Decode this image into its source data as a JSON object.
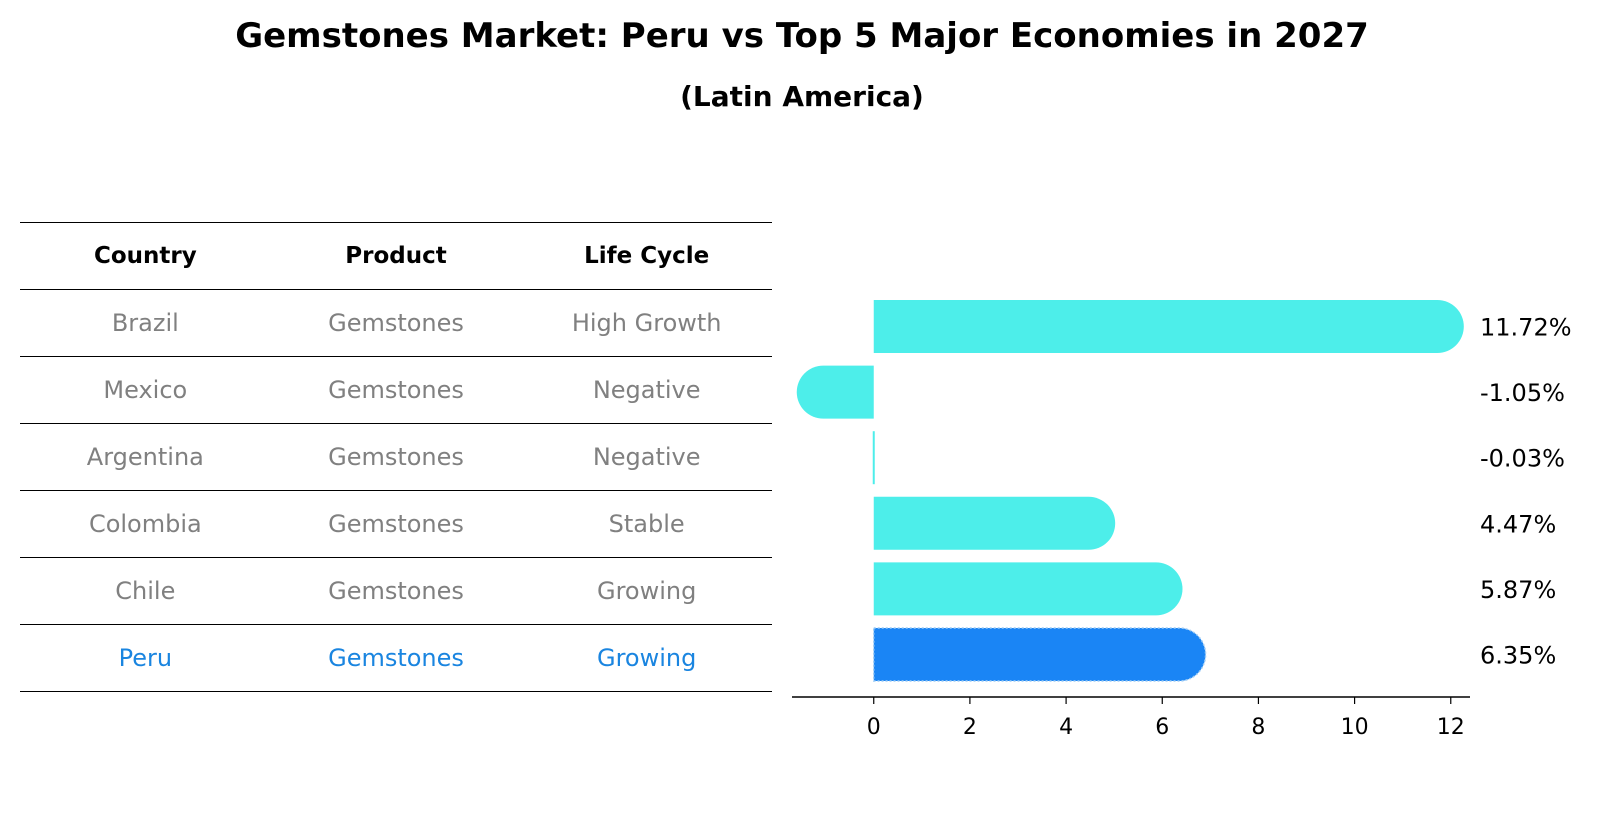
{
  "title": "Gemstones Market: Peru vs Top 5 Major Economies in 2027",
  "subtitle": "(Latin America)",
  "table": {
    "headers": [
      "Country",
      "Product",
      "Life Cycle"
    ],
    "rows": [
      {
        "country": "Brazil",
        "product": "Gemstones",
        "life_cycle": "High Growth"
      },
      {
        "country": "Mexico",
        "product": "Gemstones",
        "life_cycle": "Negative"
      },
      {
        "country": "Argentina",
        "product": "Gemstones",
        "life_cycle": "Negative"
      },
      {
        "country": "Colombia",
        "product": "Gemstones",
        "life_cycle": "Stable"
      },
      {
        "country": "Chile",
        "product": "Gemstones",
        "life_cycle": "Growing"
      },
      {
        "country": "Peru",
        "product": "Gemstones",
        "life_cycle": "Growing"
      }
    ]
  },
  "chart_data": {
    "type": "bar",
    "orientation": "horizontal",
    "categories": [
      "Brazil",
      "Mexico",
      "Argentina",
      "Colombia",
      "Chile",
      "Peru"
    ],
    "values": [
      11.72,
      -1.05,
      -0.03,
      4.47,
      5.87,
      6.35
    ],
    "value_labels": [
      "11.72%",
      "-1.05%",
      "-0.03%",
      "4.47%",
      "5.87%",
      "6.35%"
    ],
    "xticks": [
      "0",
      "2",
      "4",
      "6",
      "8",
      "10",
      "12"
    ],
    "xlim": [
      -1.7,
      12.4
    ],
    "highlight": "Peru",
    "colors": {
      "bar": "#4deeea",
      "highlight": "#1a85f5",
      "text_muted": "#808080",
      "text_highlight": "#1a85e0"
    }
  }
}
